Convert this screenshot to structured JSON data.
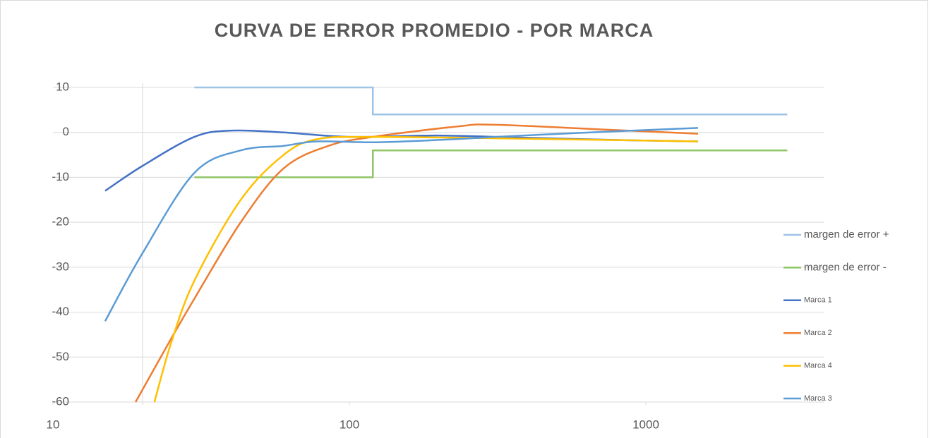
{
  "chart_data": {
    "type": "line",
    "title": "CURVA DE ERROR PROMEDIO - POR MARCA",
    "xscale": "log",
    "xlim": [
      10,
      4000
    ],
    "xticks": [
      10,
      100,
      1000
    ],
    "ylim": [
      -60,
      10
    ],
    "yticks": [
      -60,
      -50,
      -40,
      -30,
      -20,
      -10,
      0,
      10
    ],
    "grid": true,
    "legend": "right",
    "smooth": true,
    "series": [
      {
        "name": "margen de error +",
        "color": "#9dc3e6",
        "smooth": false,
        "x": [
          30,
          120,
          120,
          3000
        ],
        "values": [
          10,
          10,
          4,
          4
        ]
      },
      {
        "name": "margen de error -",
        "color": "#8fc566",
        "smooth": false,
        "x": [
          30,
          120,
          120,
          3000
        ],
        "values": [
          -10,
          -10,
          -4,
          -4
        ]
      },
      {
        "name": "Marca 1",
        "color": "#4472c4",
        "x": [
          15,
          20,
          30,
          40,
          60,
          100,
          200,
          400,
          800,
          1500
        ],
        "values": [
          -13,
          -7.5,
          -1,
          0.4,
          0,
          -1,
          -0.7,
          -1.2,
          -1.7,
          -2
        ]
      },
      {
        "name": "Marca 2",
        "color": "#ed7d31",
        "x": [
          19,
          25,
          30,
          43,
          60,
          85,
          120,
          230,
          310,
          800,
          1500
        ],
        "values": [
          -60,
          -46,
          -37,
          -20,
          -8,
          -3,
          -1,
          1.3,
          1.7,
          0.5,
          -0.3
        ]
      },
      {
        "name": "Marca 4",
        "color": "#ffc000",
        "x": [
          22,
          25,
          30,
          43,
          60,
          78,
          120,
          300,
          1500
        ],
        "values": [
          -60,
          -47,
          -33,
          -15,
          -5,
          -1.5,
          -1,
          -1.3,
          -2
        ]
      },
      {
        "name": "Marca 3",
        "color": "#5b9bd5",
        "x": [
          15,
          20,
          30,
          43,
          60,
          78,
          125,
          230,
          310,
          650,
          1500
        ],
        "values": [
          -42,
          -27,
          -9,
          -4,
          -3,
          -2,
          -2.2,
          -1.5,
          -1,
          0,
          1
        ]
      }
    ]
  }
}
